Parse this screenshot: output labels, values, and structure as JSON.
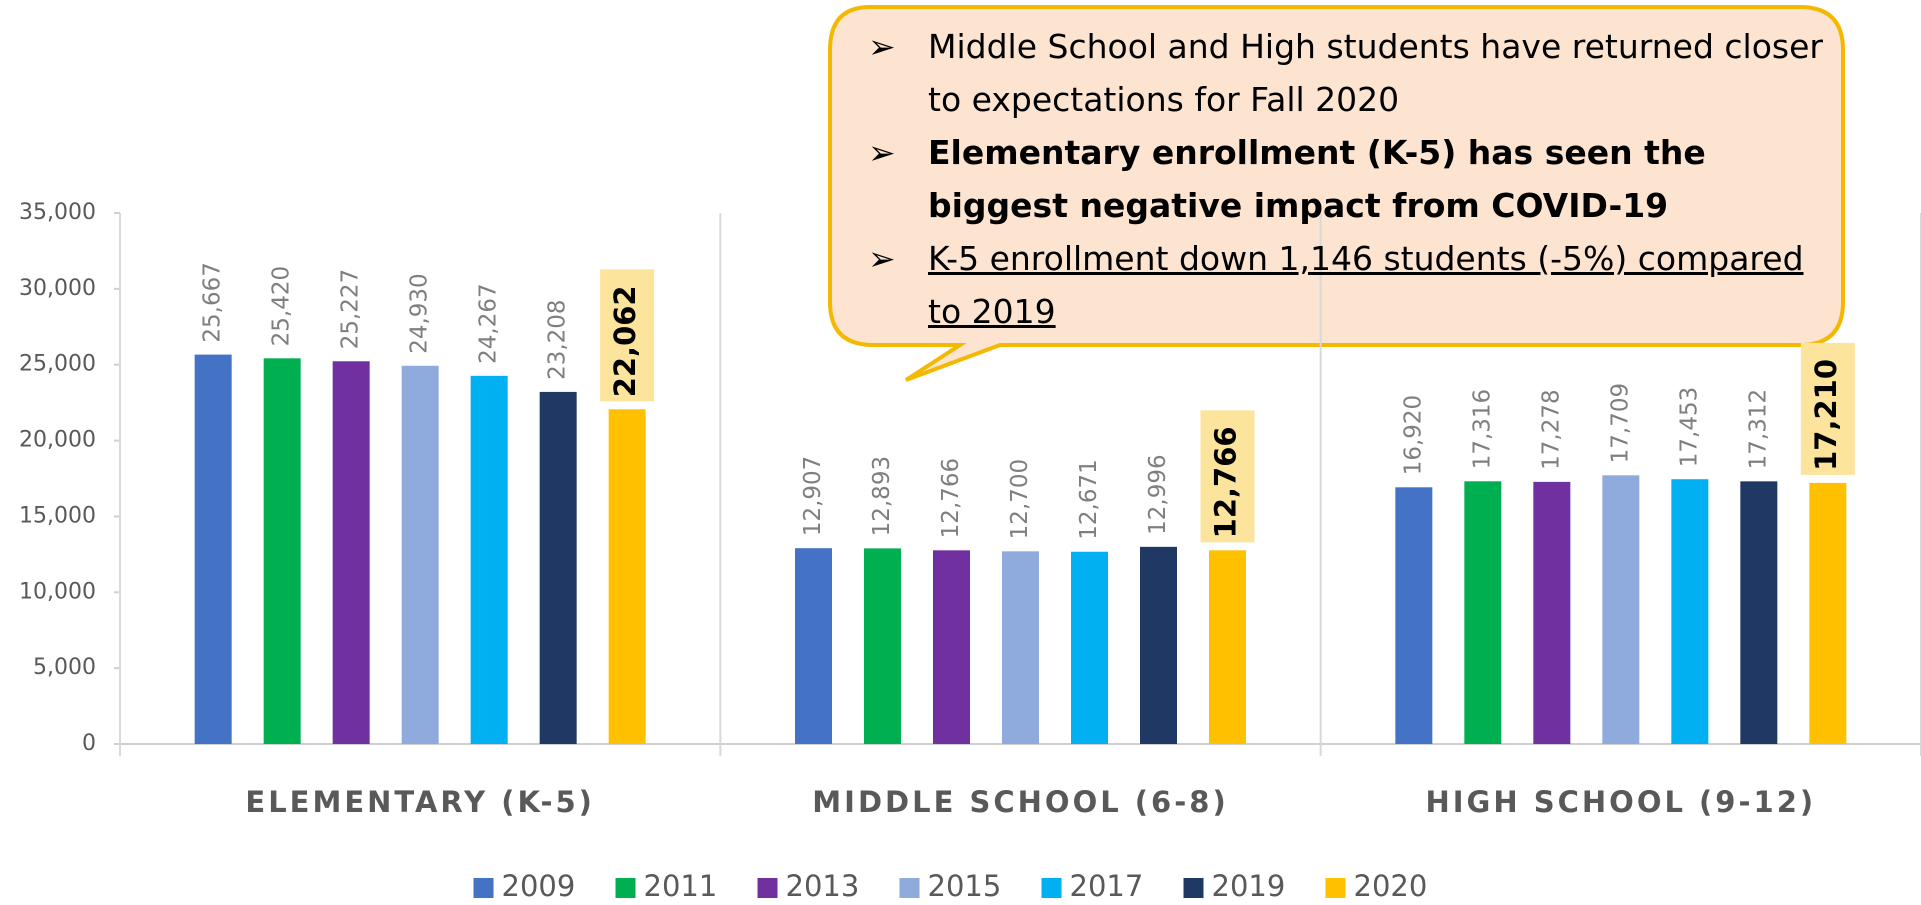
{
  "chart_data": {
    "type": "bar",
    "categories": [
      "ELEMENTARY (K-5)",
      "MIDDLE SCHOOL (6-8)",
      "HIGH SCHOOL (9-12)"
    ],
    "series": [
      {
        "name": "2009",
        "color": "#4472c4",
        "values": [
          25667,
          12907,
          16920
        ],
        "value_labels": [
          "25,667",
          "12,907",
          "16,920"
        ]
      },
      {
        "name": "2011",
        "color": "#00b050",
        "values": [
          25420,
          12893,
          17316
        ],
        "value_labels": [
          "25,420",
          "12,893",
          "17,316"
        ]
      },
      {
        "name": "2013",
        "color": "#7030a0",
        "values": [
          25227,
          12766,
          17278
        ],
        "value_labels": [
          "25,227",
          "12,766",
          "17,278"
        ]
      },
      {
        "name": "2015",
        "color": "#8faadc",
        "values": [
          24930,
          12700,
          17709
        ],
        "value_labels": [
          "24,930",
          "12,700",
          "17,709"
        ]
      },
      {
        "name": "2017",
        "color": "#00b0f0",
        "values": [
          24267,
          12671,
          17453
        ],
        "value_labels": [
          "24,267",
          "12,671",
          "17,453"
        ]
      },
      {
        "name": "2019",
        "color": "#203864",
        "values": [
          23208,
          12996,
          17312
        ],
        "value_labels": [
          "23,208",
          "12,996",
          "17,312"
        ]
      },
      {
        "name": "2020",
        "color": "#ffc000",
        "values": [
          22062,
          12766,
          17210
        ],
        "value_labels": [
          "22,062",
          "12,766",
          "17,210"
        ]
      }
    ],
    "ylim": [
      0,
      35000
    ],
    "yticks": [
      0,
      {
        "value": 5000,
        "label": "5,000"
      },
      {
        "value": 10000,
        "label": "10,000"
      },
      {
        "value": 15000,
        "label": "15,000"
      },
      {
        "value": 20000,
        "label": "20,000"
      },
      {
        "value": 25000,
        "label": "25,000"
      },
      {
        "value": 30000,
        "label": "30,000"
      },
      {
        "value": 35000,
        "label": "35,000"
      }
    ],
    "grid": false,
    "legend": "bottom",
    "annotations": [
      "Middle School and High students have returned closer to expectations for Fall 2020",
      "Elementary enrollment (K-5) has seen the biggest negative impact from COVID-19",
      "K-5 enrollment down 1,146 students (-5%) compared to 2019"
    ]
  }
}
